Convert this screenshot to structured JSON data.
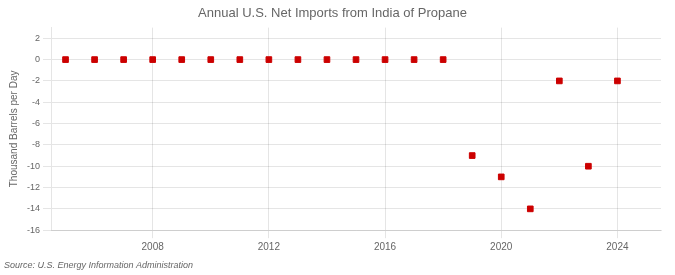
{
  "chart_data": {
    "type": "scatter",
    "title": "Annual U.S. Net Imports from India of Propane",
    "y_label": "Thousand Barrels per Day",
    "annotation": "Source: U.S. Energy Information Administration",
    "x": [
      2005,
      2006,
      2007,
      2008,
      2009,
      2010,
      2011,
      2012,
      2013,
      2014,
      2015,
      2016,
      2017,
      2018,
      2019,
      2020,
      2021,
      2022,
      2023,
      2024
    ],
    "values": [
      0,
      0,
      0,
      0,
      0,
      0,
      0,
      0,
      0,
      0,
      0,
      0,
      0,
      0,
      -9,
      -11,
      -14,
      -2,
      -10,
      -2
    ],
    "color": "#cc0000",
    "marker": "square",
    "xlim": [
      2004.5,
      2025.5
    ],
    "xticks": [
      2008,
      2012,
      2016,
      2020,
      2024
    ],
    "ylim": [
      -16,
      3
    ],
    "yticks": [
      -16,
      -14,
      -12,
      -10,
      -8,
      -6,
      -4,
      -2,
      0,
      2
    ],
    "grid": true
  }
}
